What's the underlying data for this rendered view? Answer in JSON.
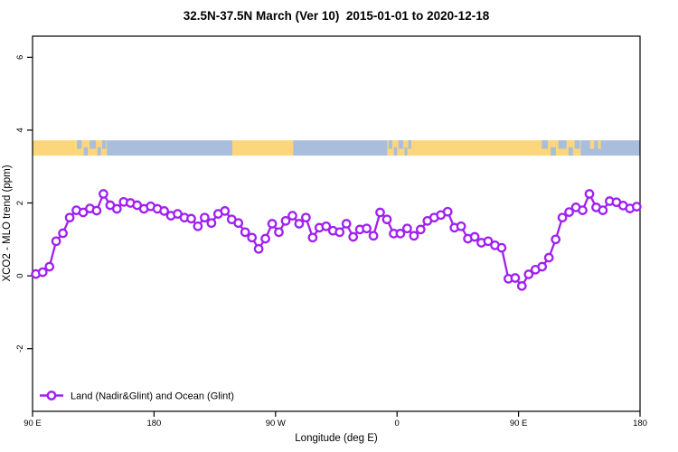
{
  "colors": {
    "series": "#A020F0",
    "marker_fill": "#FFFFFF",
    "land": "#FBD67A",
    "ocean": "#A9BEDC",
    "axis": "#000000",
    "background": "#FFFFFF"
  },
  "chart_data": {
    "type": "line",
    "title": "32.5N-37.5N March (Ver 10)  2015-01-01 to 2020-12-18",
    "xlabel": "Longitude (deg E)",
    "ylabel": "XCO2 - MLO trend (ppm)",
    "legend": [
      {
        "label": "Land (Nadir&Glint) and Ocean (Glint)",
        "color": "#A020F0",
        "marker": "circle"
      }
    ],
    "legend_position": "bottom-left",
    "grid": false,
    "xlim": [
      90,
      540
    ],
    "ylim": [
      -3.72,
      6.58
    ],
    "xticks": {
      "positions": [
        90,
        180,
        270,
        360,
        450,
        540
      ],
      "labels": [
        "90 E",
        "180",
        "90 W",
        "0",
        "90 E",
        "180"
      ]
    },
    "yticks": {
      "positions": [
        -2,
        0,
        2,
        4,
        6
      ],
      "labels": [
        "-2",
        "0",
        "2",
        "4",
        "6"
      ]
    },
    "x": [
      92.5,
      97.5,
      102.5,
      107.5,
      112.5,
      117.5,
      122.5,
      127.5,
      132.5,
      137.5,
      142.5,
      147.5,
      152.5,
      157.5,
      162.5,
      167.5,
      172.5,
      177.5,
      182.5,
      187.5,
      192.5,
      197.5,
      202.5,
      207.5,
      212.5,
      217.5,
      222.5,
      227.5,
      232.5,
      237.5,
      242.5,
      247.5,
      252.5,
      257.5,
      262.5,
      267.5,
      272.5,
      277.5,
      282.5,
      287.5,
      292.5,
      297.5,
      302.5,
      307.5,
      312.5,
      317.5,
      322.5,
      327.5,
      332.5,
      337.5,
      342.5,
      347.5,
      352.5,
      357.5,
      362.5,
      367.5,
      372.5,
      377.5,
      382.5,
      387.5,
      392.5,
      397.5,
      402.5,
      407.5,
      412.5,
      417.5,
      422.5,
      427.5,
      432.5,
      437.5,
      442.5,
      447.5,
      452.5,
      457.5,
      462.5,
      467.5,
      472.5,
      477.5,
      482.5,
      487.5,
      492.5,
      497.5,
      502.5,
      507.5,
      512.5,
      517.5,
      522.5,
      527.5,
      532.5,
      537.5
    ],
    "y": [
      0.05,
      0.1,
      0.25,
      0.95,
      1.17,
      1.6,
      1.8,
      1.74,
      1.85,
      1.79,
      2.25,
      1.94,
      1.84,
      2.03,
      2.0,
      1.94,
      1.84,
      1.91,
      1.84,
      1.78,
      1.65,
      1.7,
      1.6,
      1.57,
      1.36,
      1.6,
      1.45,
      1.7,
      1.78,
      1.55,
      1.45,
      1.2,
      1.05,
      0.74,
      1.02,
      1.43,
      1.2,
      1.51,
      1.65,
      1.43,
      1.6,
      1.05,
      1.32,
      1.36,
      1.24,
      1.2,
      1.43,
      1.07,
      1.27,
      1.3,
      1.1,
      1.74,
      1.55,
      1.16,
      1.16,
      1.3,
      1.1,
      1.27,
      1.51,
      1.6,
      1.67,
      1.76,
      1.32,
      1.36,
      1.02,
      1.07,
      0.91,
      0.95,
      0.84,
      0.77,
      -0.08,
      -0.06,
      -0.28,
      0.04,
      0.17,
      0.25,
      0.5,
      1.0,
      1.6,
      1.75,
      1.88,
      1.8,
      2.25,
      1.88,
      1.8,
      2.05,
      2.02,
      1.93,
      1.85,
      1.9
    ],
    "band": {
      "description": "land-ocean strip along longitude",
      "value_range": [
        3.3,
        3.72
      ],
      "segments": [
        {
          "from": 90,
          "to": 122,
          "type": "land"
        },
        {
          "from": 122,
          "to": 145,
          "type": "mix"
        },
        {
          "from": 145,
          "to": 238,
          "type": "ocean"
        },
        {
          "from": 238,
          "to": 283,
          "type": "land"
        },
        {
          "from": 283,
          "to": 353,
          "type": "ocean"
        },
        {
          "from": 353,
          "to": 371,
          "type": "mix"
        },
        {
          "from": 371,
          "to": 466,
          "type": "land"
        },
        {
          "from": 466,
          "to": 496,
          "type": "mix"
        },
        {
          "from": 496,
          "to": 540,
          "type": "ocean"
        },
        {
          "from": 503,
          "to": 506,
          "type": "speck-land"
        },
        {
          "from": 509,
          "to": 511,
          "type": "speck-land"
        }
      ]
    }
  }
}
